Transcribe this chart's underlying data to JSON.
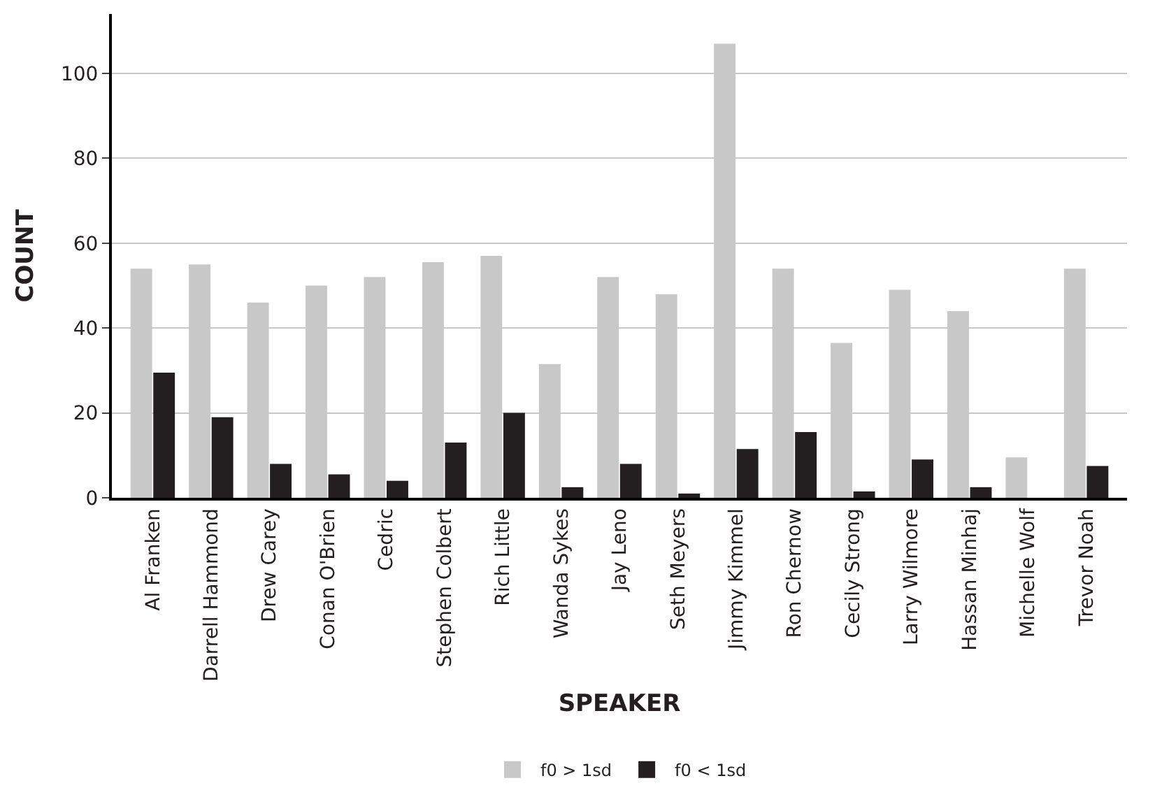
{
  "chart_data": {
    "type": "bar",
    "xlabel": "SPEAKER",
    "ylabel": "COUNT",
    "categories": [
      "Al Franken",
      "Darrell Hammond",
      "Drew Carey",
      "Conan O'Brien",
      "Cedric",
      "Stephen Colbert",
      "Rich Little",
      "Wanda Sykes",
      "Jay Leno",
      "Seth Meyers",
      "Jimmy Kimmel",
      "Ron Chernow",
      "Cecily Strong",
      "Larry Wilmore",
      "Hassan Minhaj",
      "Michelle Wolf",
      "Trevor Noah"
    ],
    "series": [
      {
        "name": "f0 > 1sd",
        "color": "#c8c8c8",
        "values": [
          54,
          55,
          46,
          50,
          52,
          55.5,
          57,
          31.5,
          52,
          48,
          107,
          54,
          36.5,
          49,
          44,
          9.5,
          54
        ]
      },
      {
        "name": "f0 < 1sd",
        "color": "#231f20",
        "values": [
          29.5,
          19,
          8,
          5.5,
          4,
          13,
          20,
          2.5,
          8,
          1,
          11.5,
          15.5,
          1.5,
          9,
          2.5,
          0,
          7.5
        ]
      }
    ],
    "ylim": [
      0,
      114
    ],
    "yticks": [
      0,
      20,
      40,
      60,
      80,
      100
    ],
    "grid": "y",
    "legend": "bottom"
  }
}
